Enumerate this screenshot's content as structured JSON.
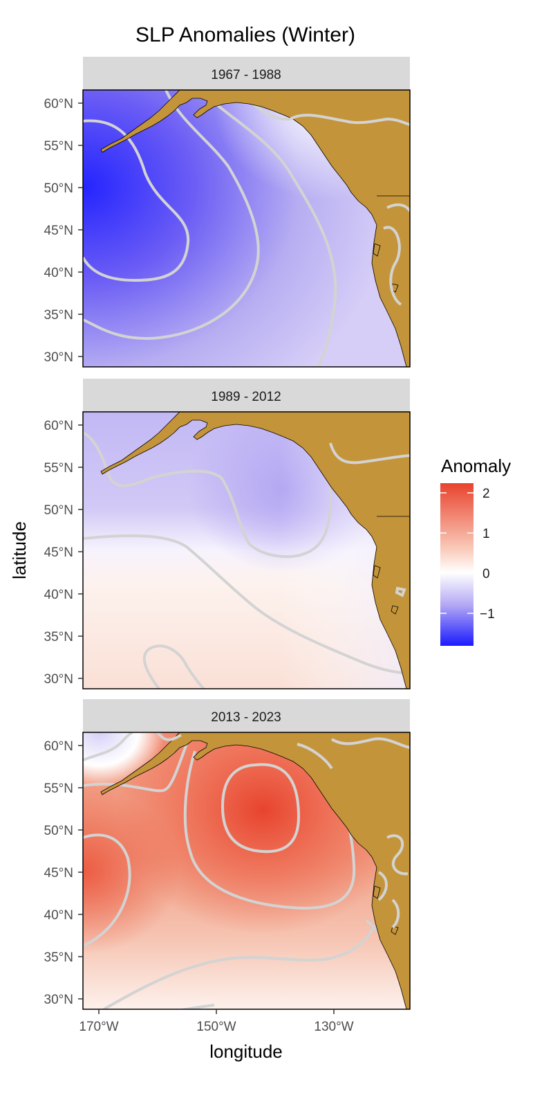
{
  "title": "SLP Anomalies (Winter)",
  "xlabel": "longitude",
  "ylabel": "latitude",
  "x_ticks": [
    "170°W",
    "150°W",
    "130°W"
  ],
  "y_ticks": [
    "60°N",
    "55°N",
    "50°N",
    "45°N",
    "40°N",
    "35°N",
    "30°N"
  ],
  "legend": {
    "title": "Anomaly",
    "ticks": [
      "2",
      "1",
      "0",
      "−1"
    ]
  },
  "colors": {
    "low": "#1a1aff",
    "mid": "#ffffff",
    "high": "#e8432d",
    "land": "#c4943a",
    "contour": "#d3d3d3",
    "strip": "#d9d9d9"
  },
  "panels": [
    {
      "label": "1967 - 1988"
    },
    {
      "label": "1989 - 2012"
    },
    {
      "label": "2013 - 2023"
    }
  ]
}
